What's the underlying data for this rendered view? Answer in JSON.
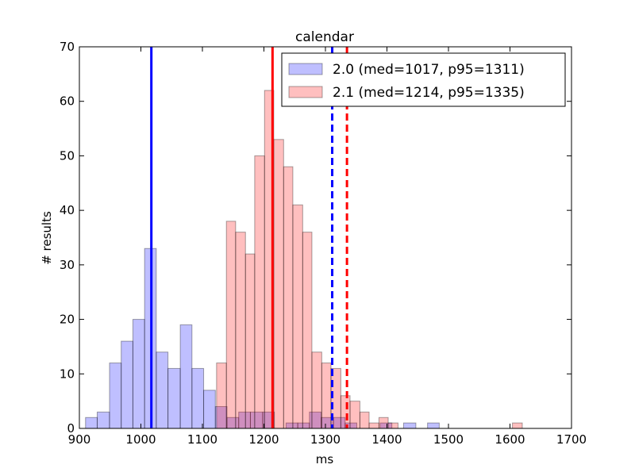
{
  "chart_data": {
    "type": "histogram",
    "title": "calendar",
    "xlabel": "ms",
    "ylabel": "# results",
    "xlim": [
      900,
      1700
    ],
    "ylim": [
      0,
      70
    ],
    "xticks": [
      900,
      1000,
      1100,
      1200,
      1300,
      1400,
      1500,
      1600,
      1700
    ],
    "yticks": [
      0,
      10,
      20,
      30,
      40,
      50,
      60,
      70
    ],
    "legend_position": "upper-right",
    "series": [
      {
        "name": "2.0 (med=1017, p95=1311)",
        "color": "#0000ff",
        "median": 1017,
        "p95": 1311,
        "bin_edges": [
          910,
          929,
          949,
          968,
          987,
          1006,
          1025,
          1044,
          1064,
          1083,
          1102,
          1121,
          1140,
          1159,
          1178,
          1198,
          1217,
          1236,
          1255,
          1274,
          1293,
          1313,
          1332,
          1351,
          1370,
          1389,
          1408,
          1427,
          1447,
          1466,
          1485
        ],
        "counts": [
          2,
          3,
          12,
          16,
          20,
          33,
          14,
          11,
          19,
          11,
          7,
          4,
          2,
          3,
          3,
          3,
          0,
          1,
          1,
          3,
          2,
          2,
          1,
          0,
          0,
          1,
          0,
          1,
          0,
          1
        ]
      },
      {
        "name": "2.1 (med=1214, p95=1335)",
        "color": "#ff0000",
        "median": 1214,
        "p95": 1335,
        "bin_edges": [
          1123,
          1139,
          1154,
          1170,
          1185,
          1201,
          1216,
          1232,
          1247,
          1263,
          1278,
          1294,
          1309,
          1325,
          1340,
          1356,
          1371,
          1387,
          1402,
          1418,
          1433,
          1449,
          1464,
          1480,
          1495,
          1511,
          1526,
          1542,
          1557,
          1573,
          1588,
          1604,
          1620
        ],
        "counts": [
          12,
          38,
          36,
          32,
          50,
          62,
          53,
          48,
          41,
          36,
          14,
          12,
          11,
          6,
          5,
          3,
          1,
          2,
          1,
          0,
          0,
          0,
          0,
          0,
          0,
          0,
          0,
          0,
          0,
          0,
          0,
          1
        ]
      }
    ]
  }
}
